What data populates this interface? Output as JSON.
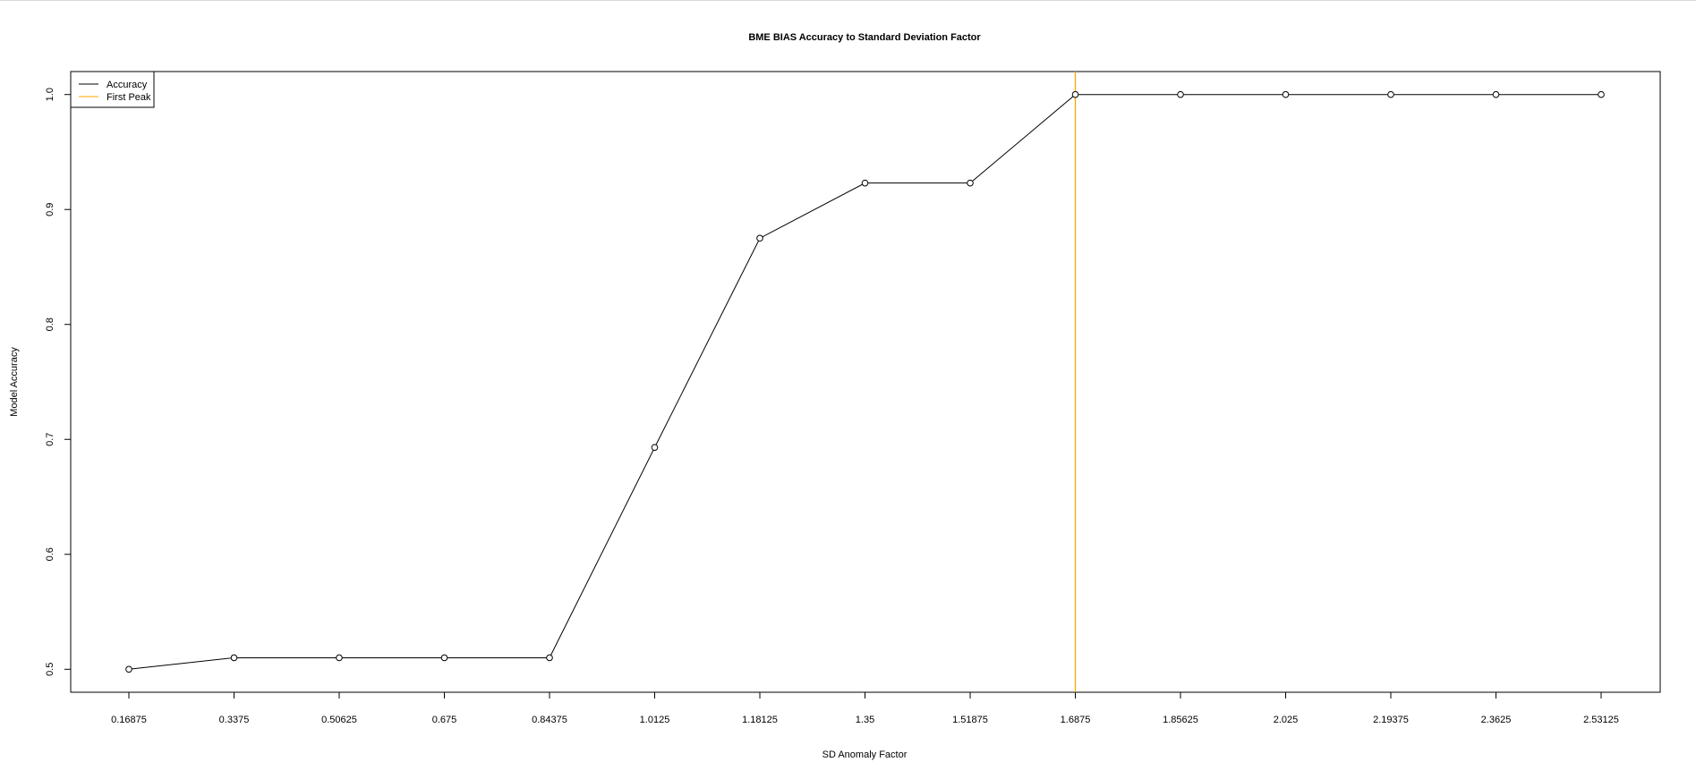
{
  "chart_data": {
    "type": "line",
    "title": "BME BIAS Accuracy to Standard Deviation Factor",
    "xlabel": "SD Anomaly Factor",
    "ylabel": "Model Accuracy",
    "x": [
      "0.16875",
      "0.3375",
      "0.50625",
      "0.675",
      "0.84375",
      "1.0125",
      "1.18125",
      "1.35",
      "1.51875",
      "1.6875",
      "1.85625",
      "2.025",
      "2.19375",
      "2.3625",
      "2.53125"
    ],
    "series": [
      {
        "name": "Accuracy",
        "color": "#000000",
        "values": [
          0.5,
          0.51,
          0.51,
          0.51,
          0.51,
          0.693,
          0.875,
          0.923,
          0.923,
          1.0,
          1.0,
          1.0,
          1.0,
          1.0,
          1.0
        ]
      }
    ],
    "vline": {
      "name": "First Peak",
      "x": "1.6875",
      "color": "#FFA500"
    },
    "ylim": [
      0.48,
      1.02
    ],
    "yticks": [
      0.5,
      0.6,
      0.7,
      0.8,
      0.9,
      1.0
    ],
    "ytick_labels": [
      "0.5",
      "0.6",
      "0.7",
      "0.8",
      "0.9",
      "1.0"
    ],
    "grid": false,
    "legend": {
      "placement": "top-left",
      "entries": [
        {
          "label": "Accuracy",
          "color": "#000000"
        },
        {
          "label": "First Peak",
          "color": "#FFA500"
        }
      ]
    }
  }
}
